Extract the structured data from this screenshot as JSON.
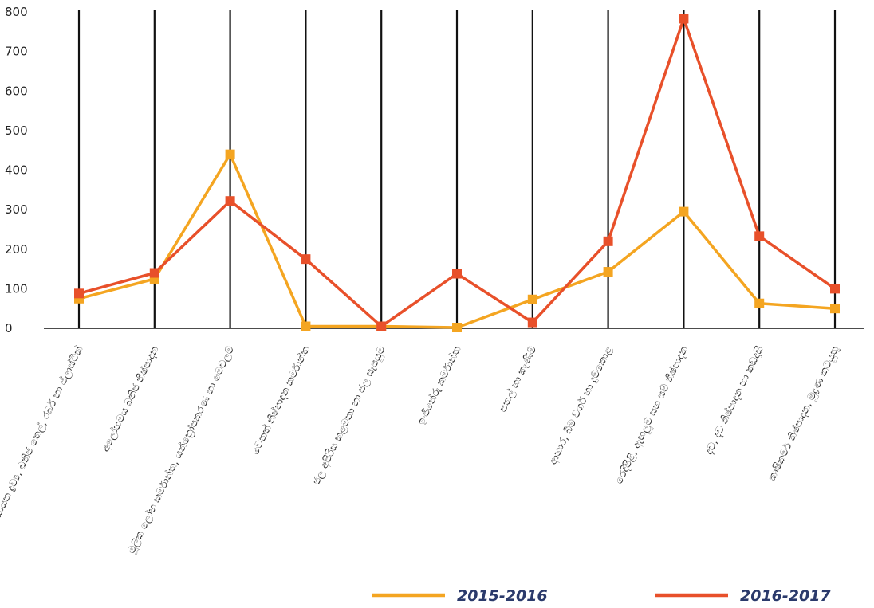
{
  "chart_data": {
    "type": "line",
    "title": "",
    "xlabel": "",
    "ylabel": "",
    "ylim": [
      0,
      800
    ],
    "yticks": [
      "0",
      "100",
      "200",
      "300",
      "400",
      "500",
      "600",
      "700",
      "800"
    ],
    "grid": "vertical lines at each category",
    "legend_position": "bottom-right",
    "categories": [
      "රසායන ද්‍රව්‍ය, ඛනිජ තෙල්, රබර් හා ප්ලාස්ටික්",
      "අලෝහමය ඛනිජ නිෂ්පාදන",
      "මූලික ලෝහ කර්මාන්ත, යන්ත්‍රෝපකරණ හා මෙවලම්",
      "වෙනත් නිෂ්පාදන කර්මාන්ත",
      "ජල අපිරිස කළමනා හා ජල සැපයුම",
      "ඉංජිනේරු කර්මාන්ත",
      "පතල් හා කැණීම්",
      "ආහාර, බීම වර්ග හා දුම්කොළ",
      "රෙදිපිළි, ඇඟලුම් සහ සම් නිෂ්පාදන",
      "දැව, දැව නිෂ්පාදන හා කඩදාසි",
      "කෘෂිකර්ම නිෂ්පාදන, මුද්‍රණ කටයුතු"
    ],
    "series": [
      {
        "name": "2015-2016",
        "color": "#f4a521",
        "values": [
          75,
          125,
          440,
          5,
          5,
          2,
          73,
          143,
          295,
          63,
          50
        ]
      },
      {
        "name": "2016-2017",
        "color": "#e8502a",
        "values": [
          88,
          140,
          322,
          175,
          5,
          138,
          15,
          220,
          783,
          233,
          100
        ]
      }
    ]
  }
}
